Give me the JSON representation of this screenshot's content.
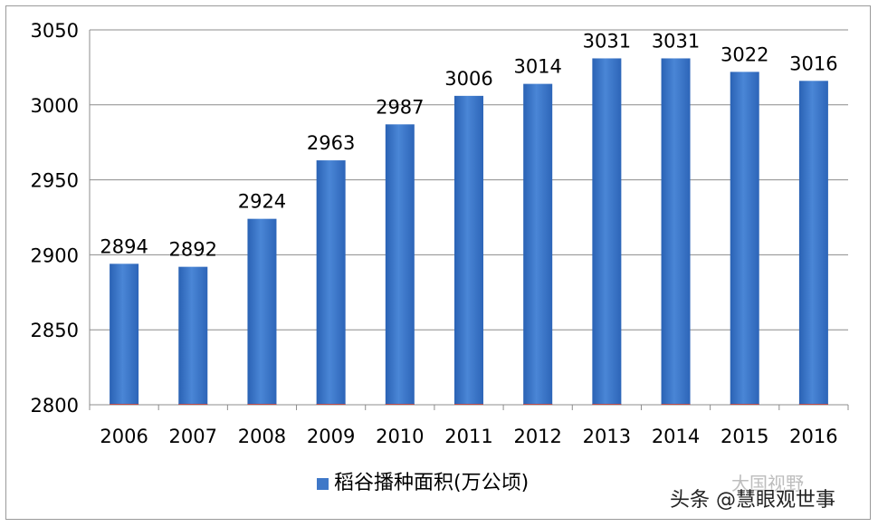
{
  "chart_data": {
    "type": "bar",
    "categories": [
      "2006",
      "2007",
      "2008",
      "2009",
      "2010",
      "2011",
      "2012",
      "2013",
      "2014",
      "2015",
      "2016"
    ],
    "series": [
      {
        "name": "稻谷播种面积(万公顷)",
        "values": [
          2894,
          2892,
          2924,
          2963,
          2987,
          3006,
          3014,
          3031,
          3031,
          3022,
          3016
        ],
        "color": "#3f78c8"
      }
    ],
    "data_labels": [
      "2894",
      "2892",
      "2924",
      "2963",
      "2987",
      "3006",
      "3014",
      "3031",
      "3031",
      "3022",
      "3016"
    ],
    "ylim": [
      2800,
      3050
    ],
    "yticks": [
      2800,
      2850,
      2900,
      2950,
      3000,
      3050
    ],
    "grid": true,
    "legend_position": "bottom"
  },
  "watermark": {
    "text": "头条 @慧眼观世事",
    "faint_text": "大国视野"
  }
}
